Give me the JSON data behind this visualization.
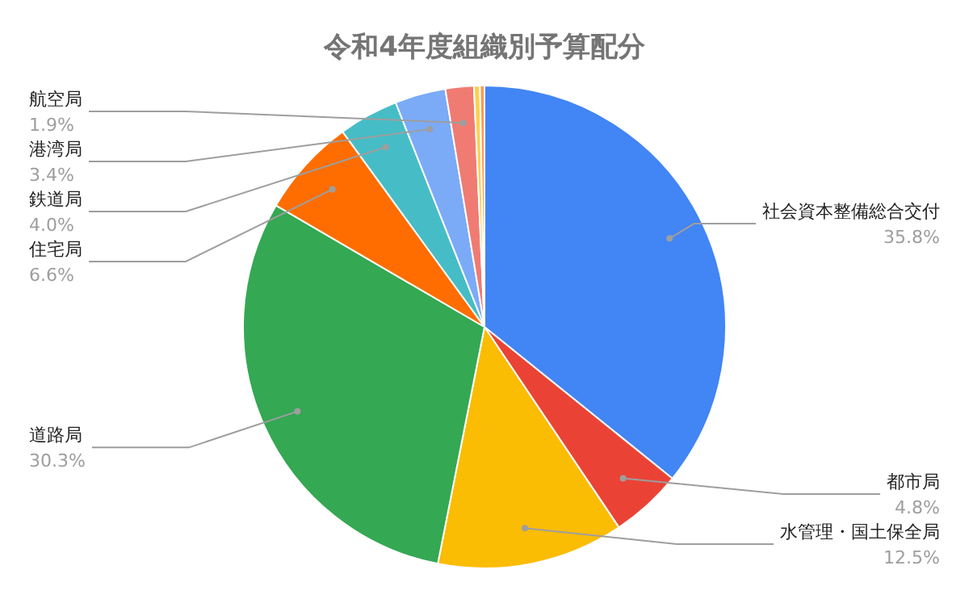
{
  "chart_data": {
    "type": "pie",
    "title": "令和4年度組織別予算配分",
    "categories": [
      "社会資本整備総合交付",
      "都市局",
      "水管理・国土保全局",
      "道路局",
      "住宅局",
      "鉄道局",
      "港湾局",
      "航空局",
      null,
      null
    ],
    "values": [
      35.8,
      4.8,
      12.5,
      30.3,
      6.6,
      4.0,
      3.4,
      1.9,
      0.4,
      0.3
    ],
    "value_labels": [
      "35.8%",
      "4.8%",
      "12.5%",
      "30.3%",
      "6.6%",
      "4.0%",
      "3.4%",
      "1.9%",
      null,
      null
    ],
    "colors": [
      "#4285f4",
      "#ea4335",
      "#fbbc04",
      "#34a853",
      "#ff6d01",
      "#46bdc6",
      "#7baaf7",
      "#f07b72",
      "#fcd04f",
      "#ff994d"
    ],
    "legend": false
  }
}
